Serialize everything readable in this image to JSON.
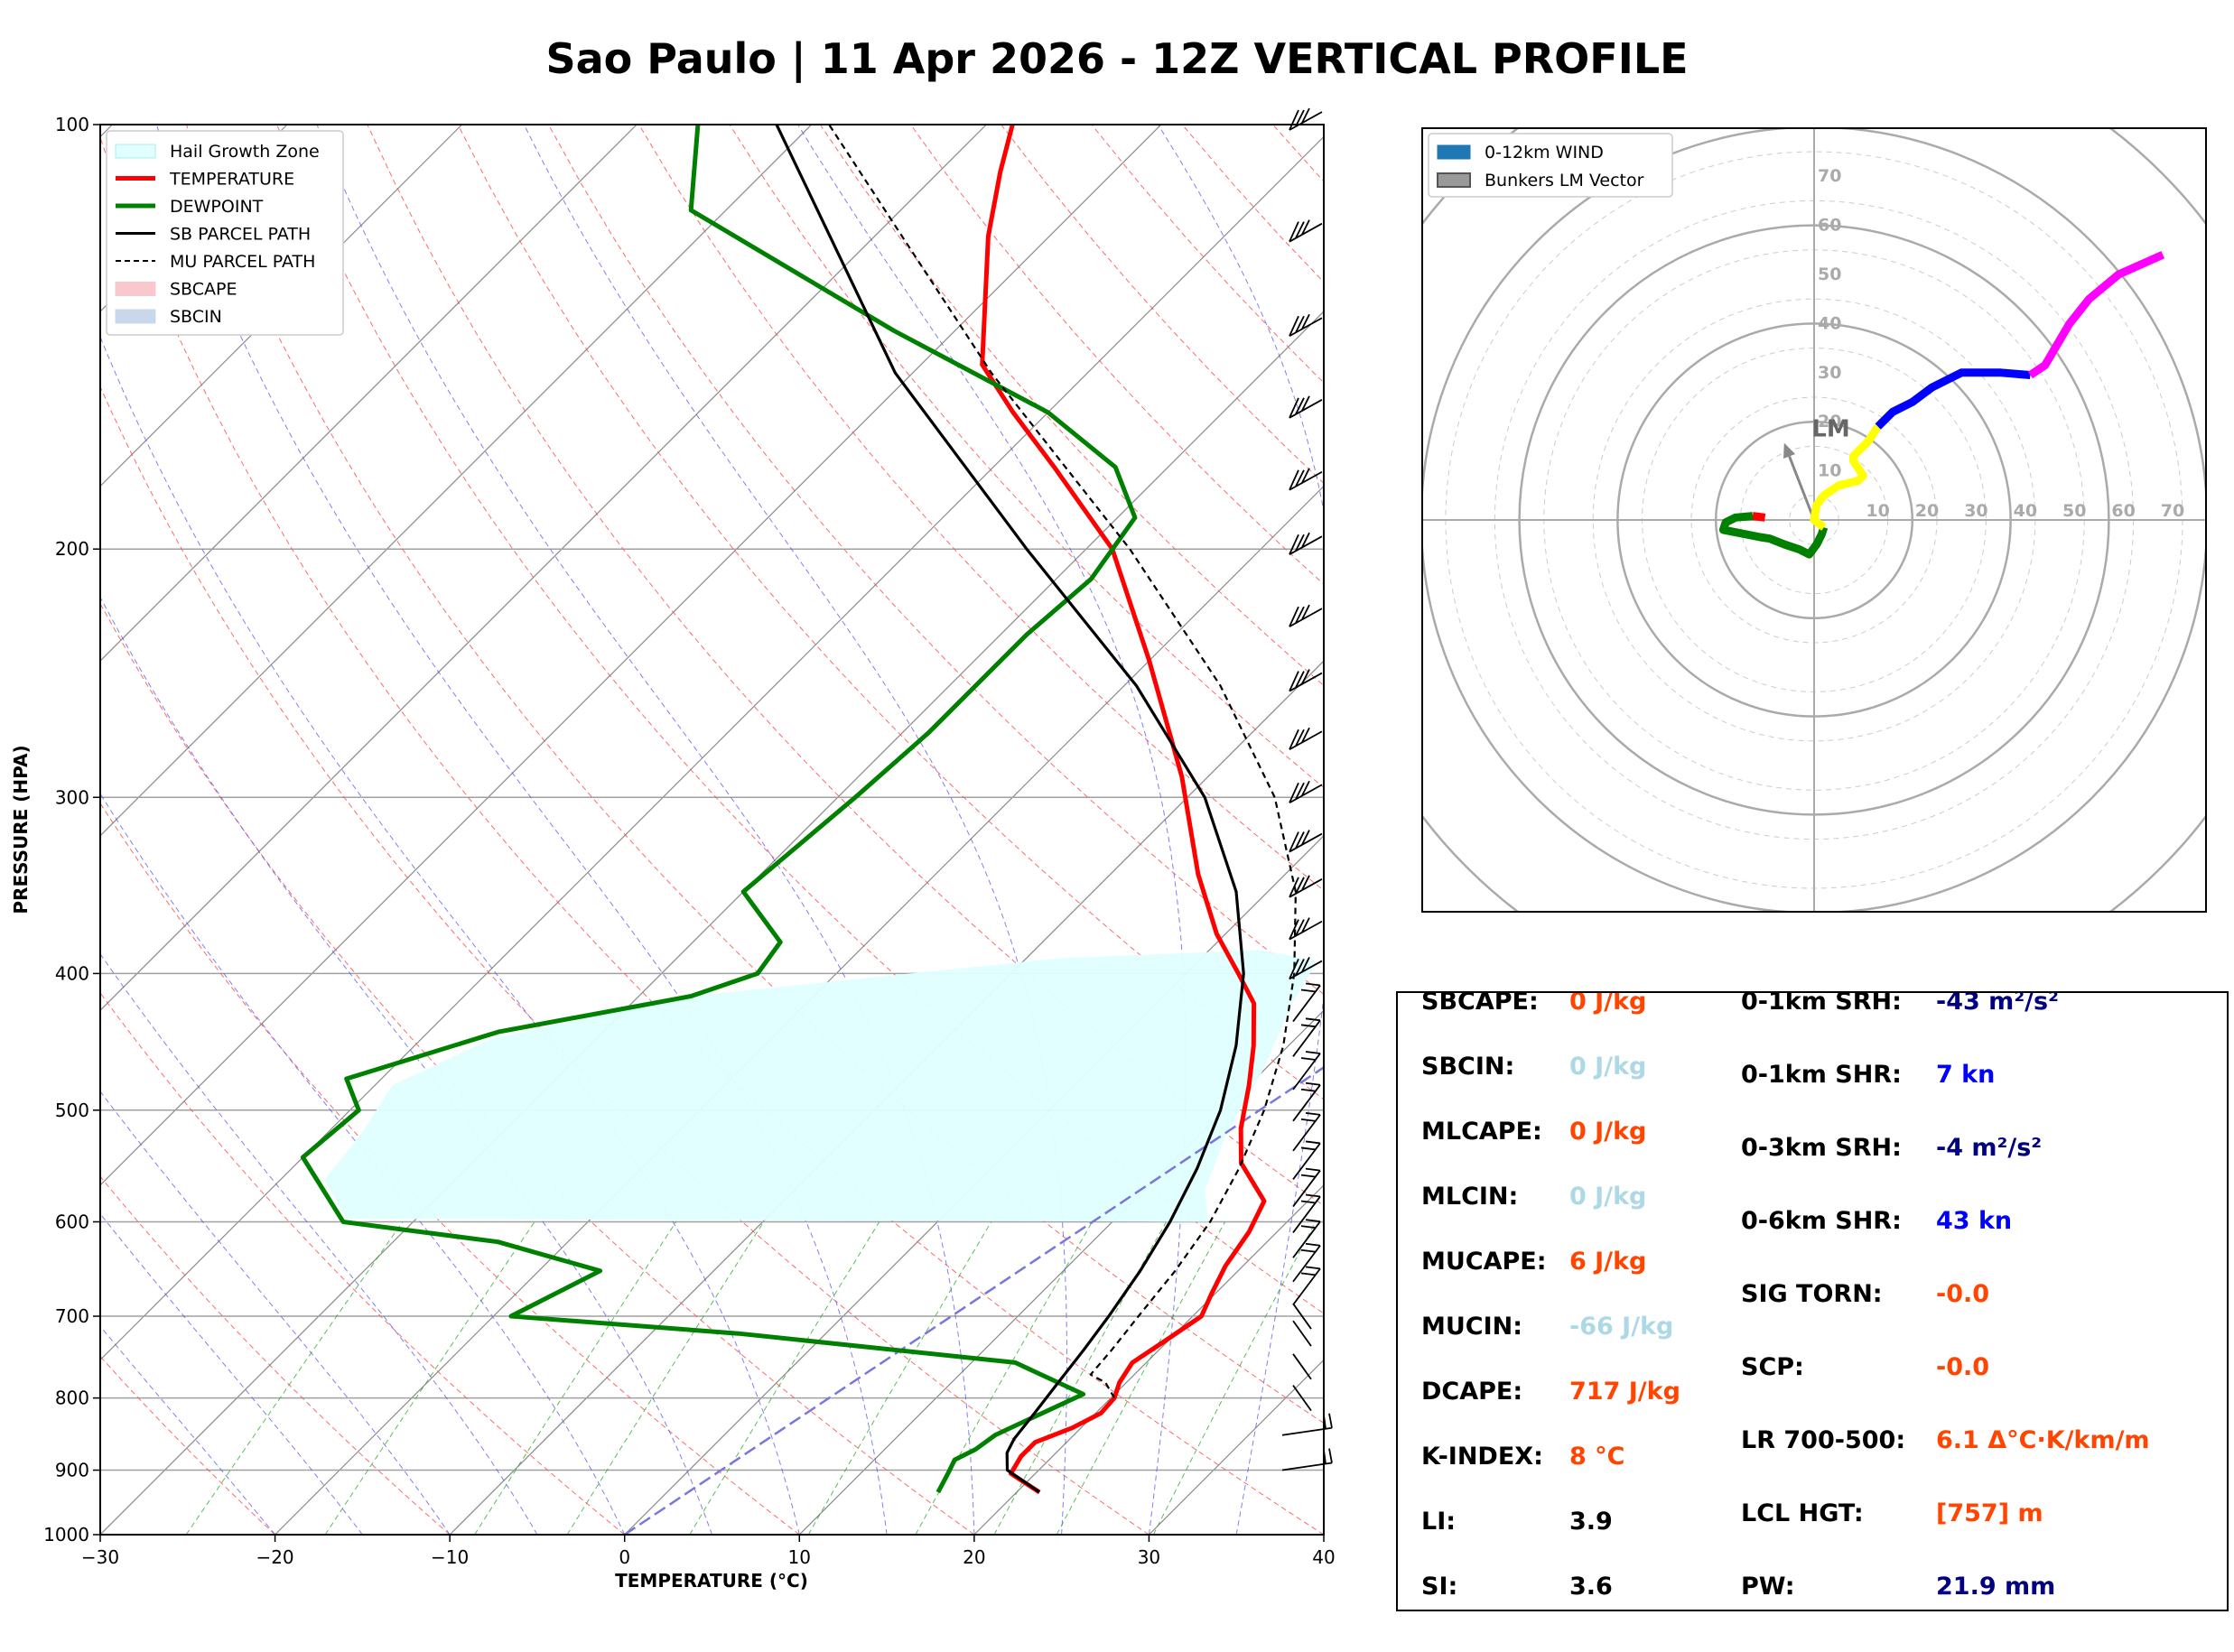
{
  "page": {
    "title": "Sao Paulo | 11 Apr 2026 - 12Z VERTICAL PROFILE"
  },
  "skewt": {
    "xlabel": "TEMPERATURE (°C)",
    "ylabel": "PRESSURE (HPA)",
    "xlim": [
      -30,
      40
    ],
    "ylim": [
      1000,
      100
    ],
    "log_pressure": true,
    "skew": "45° isotherms",
    "x_ticks": [
      -30,
      -20,
      -10,
      0,
      10,
      20,
      30,
      40
    ],
    "p_ticks": [
      100,
      200,
      300,
      400,
      500,
      600,
      700,
      800,
      900,
      1000
    ],
    "legend_position": "top-left",
    "legend": [
      {
        "label": "Hail Growth Zone",
        "kind": "patch",
        "color": "#e0ffff",
        "edge": "#aaeeee"
      },
      {
        "label": "TEMPERATURE",
        "kind": "line",
        "color": "#ff0000",
        "width": 5,
        "dash": ""
      },
      {
        "label": "DEWPOINT",
        "kind": "line",
        "color": "#008000",
        "width": 5,
        "dash": ""
      },
      {
        "label": "SB PARCEL PATH",
        "kind": "line",
        "color": "#000000",
        "width": 3,
        "dash": ""
      },
      {
        "label": "MU PARCEL PATH",
        "kind": "line",
        "color": "#000000",
        "width": 2,
        "dash": "6,4"
      },
      {
        "label": "SBCAPE",
        "kind": "patch",
        "color": "#f8c8cc",
        "edge": "#f8c8cc"
      },
      {
        "label": "SBCIN",
        "kind": "patch",
        "color": "#c8d8ea",
        "edge": "#c8d8ea"
      }
    ]
  },
  "chart_data": [
    {
      "type": "line",
      "series": [
        {
          "name": "TEMPERATURE",
          "color": "#ff0000",
          "points": [
            [
              933,
              21.3
            ],
            [
              905,
              18.6
            ],
            [
              880,
              18.2
            ],
            [
              860,
              18.2
            ],
            [
              840,
              19.5
            ],
            [
              820,
              20.3
            ],
            [
              800,
              20.2
            ],
            [
              780,
              19.6
            ],
            [
              755,
              19.2
            ],
            [
              730,
              19.8
            ],
            [
              700,
              20.5
            ],
            [
              675,
              19.8
            ],
            [
              645,
              19.0
            ],
            [
              610,
              18.4
            ],
            [
              580,
              17.5
            ],
            [
              545,
              14.0
            ],
            [
              515,
              12.0
            ],
            [
              480,
              10.0
            ],
            [
              450,
              8.0
            ],
            [
              420,
              5.6
            ],
            [
              400,
              3.0
            ],
            [
              375,
              -0.5
            ],
            [
              340,
              -5.0
            ],
            [
              290,
              -11.5
            ],
            [
              240,
              -20.0
            ],
            [
              200,
              -28.5
            ],
            [
              175,
              -36.5
            ],
            [
              160,
              -42.0
            ],
            [
              148,
              -46.5
            ],
            [
              120,
              -53.5
            ],
            [
              108,
              -56.5
            ],
            [
              100,
              -58.5
            ]
          ]
        },
        {
          "name": "DEWPOINT",
          "color": "#008000",
          "points": [
            [
              933,
              15.5
            ],
            [
              905,
              15.0
            ],
            [
              885,
              14.6
            ],
            [
              870,
              15.2
            ],
            [
              850,
              15.5
            ],
            [
              835,
              16.2
            ],
            [
              815,
              17.2
            ],
            [
              795,
              18.2
            ],
            [
              755,
              12.5
            ],
            [
              720,
              -5.0
            ],
            [
              700,
              -19.0
            ],
            [
              650,
              -16.5
            ],
            [
              620,
              -24.0
            ],
            [
              600,
              -34.0
            ],
            [
              540,
              -40.0
            ],
            [
              500,
              -39.5
            ],
            [
              475,
              -42.0
            ],
            [
              440,
              -36.0
            ],
            [
              415,
              -27.0
            ],
            [
              400,
              -24.5
            ],
            [
              380,
              -25.0
            ],
            [
              350,
              -30.0
            ],
            [
              300,
              -29.0
            ],
            [
              270,
              -28.5
            ],
            [
              230,
              -28.5
            ],
            [
              210,
              -28.0
            ],
            [
              190,
              -29.0
            ],
            [
              175,
              -33.0
            ],
            [
              160,
              -40.0
            ],
            [
              140,
              -53.5
            ],
            [
              115,
              -72.0
            ],
            [
              100,
              -76.5
            ]
          ]
        },
        {
          "name": "SB PARCEL PATH",
          "color": "#000000",
          "dash": "",
          "points": [
            [
              933,
              21.3
            ],
            [
              900,
              18.2
            ],
            [
              875,
              17.2
            ],
            [
              855,
              16.8
            ],
            [
              820,
              16.5
            ],
            [
              780,
              16.1
            ],
            [
              740,
              15.7
            ],
            [
              700,
              15.2
            ],
            [
              650,
              14.4
            ],
            [
              600,
              13.3
            ],
            [
              550,
              11.8
            ],
            [
              500,
              9.8
            ],
            [
              450,
              7.0
            ],
            [
              400,
              3.3
            ],
            [
              350,
              -1.8
            ],
            [
              300,
              -9.0
            ],
            [
              250,
              -19.3
            ],
            [
              200,
              -33.4
            ],
            [
              150,
              -51.0
            ],
            [
              100,
              -72.0
            ]
          ]
        },
        {
          "name": "MU PARCEL PATH",
          "color": "#000000",
          "dash": "7,5",
          "points": [
            [
              800,
              20.2
            ],
            [
              780,
              18.8
            ],
            [
              770,
              17.5
            ],
            [
              740,
              17.3
            ],
            [
              700,
              16.9
            ],
            [
              650,
              16.4
            ],
            [
              600,
              15.6
            ],
            [
              550,
              14.2
            ],
            [
              500,
              12.3
            ],
            [
              450,
              9.7
            ],
            [
              400,
              6.2
            ],
            [
              350,
              1.6
            ],
            [
              300,
              -5.0
            ],
            [
              250,
              -14.5
            ],
            [
              200,
              -27.5
            ],
            [
              150,
              -45.5
            ],
            [
              100,
              -69.0
            ]
          ]
        }
      ],
      "hail_growth_zone": {
        "p_top": 385,
        "p_bottom": 600,
        "polygon": [
          [
            600,
            15.5
          ],
          [
            597,
            -34.0
          ],
          [
            560,
            -37.5
          ],
          [
            520,
            -38.0
          ],
          [
            480,
            -39.0
          ],
          [
            445,
            -36.0
          ],
          [
            415,
            -27.0
          ],
          [
            390,
            -8.0
          ],
          [
            385,
            3.0
          ],
          [
            392,
            6.8
          ],
          [
            420,
            7.8
          ],
          [
            470,
            10.0
          ],
          [
            520,
            11.5
          ],
          [
            570,
            13.5
          ],
          [
            600,
            15.5
          ]
        ]
      },
      "zero_isotherm_line": {
        "color": "#7777dd",
        "points": [
          [
            1000,
            0
          ],
          [
            100,
            40
          ]
        ]
      },
      "wind_barbs_pressures": [
        100,
        120,
        140,
        160,
        180,
        200,
        225,
        250,
        275,
        300,
        325,
        350,
        375,
        400,
        425,
        450,
        475,
        500,
        525,
        550,
        575,
        600,
        625,
        650,
        675,
        700,
        720,
        760,
        800,
        850,
        900
      ]
    },
    {
      "type": "hodograph",
      "legend": [
        {
          "label": "0-12km WIND",
          "color": "#1f77b4"
        },
        {
          "label": "Bunkers LM Vector",
          "color": "#999999"
        }
      ],
      "rings_kn": [
        10,
        20,
        30,
        40,
        50,
        60,
        70,
        80
      ],
      "ring_labels": [
        "10",
        "20",
        "30",
        "40",
        "50",
        "60",
        "70"
      ],
      "lm_label": "LM",
      "lm_vector_kn": [
        -7,
        18
      ],
      "segments": [
        {
          "color": "#ff0000",
          "points": [
            [
              -10,
              0.5
            ],
            [
              -12.5,
              0.8
            ]
          ]
        },
        {
          "color": "#008000",
          "points": [
            [
              -12.5,
              0.8
            ],
            [
              -16,
              0.5
            ],
            [
              -18,
              -0.5
            ],
            [
              -18.5,
              -2
            ],
            [
              -11,
              -3.5
            ],
            [
              -9,
              -3.8
            ],
            [
              -6,
              -5
            ],
            [
              -3,
              -6
            ],
            [
              -1,
              -7
            ],
            [
              0.5,
              -5
            ],
            [
              1.5,
              -3
            ],
            [
              2,
              -1.5
            ]
          ]
        },
        {
          "color": "#ffff00",
          "points": [
            [
              2,
              -1.5
            ],
            [
              0,
              0
            ],
            [
              0.5,
              3
            ],
            [
              2,
              5
            ],
            [
              5,
              7
            ],
            [
              9,
              8
            ],
            [
              10,
              9
            ],
            [
              8,
              12
            ],
            [
              8,
              13
            ],
            [
              9,
              14
            ],
            [
              11,
              16
            ],
            [
              13,
              19
            ]
          ]
        },
        {
          "color": "#0000ff",
          "points": [
            [
              13,
              19
            ],
            [
              16,
              22
            ],
            [
              20,
              24
            ],
            [
              24,
              27
            ],
            [
              30,
              30
            ],
            [
              38,
              30
            ],
            [
              44,
              29.5
            ]
          ]
        },
        {
          "color": "#ff00ff",
          "points": [
            [
              44,
              29.5
            ],
            [
              47,
              31.5
            ],
            [
              52,
              40
            ],
            [
              56,
              45
            ],
            [
              62,
              50
            ],
            [
              71,
              54
            ]
          ]
        }
      ]
    }
  ],
  "stats": {
    "left": [
      {
        "label": "SBCAPE:",
        "value": "0 J/kg",
        "color": "#ff4500"
      },
      {
        "label": "SBCIN:",
        "value": "0 J/kg",
        "color": "#add8e6"
      },
      {
        "label": "MLCAPE:",
        "value": "0 J/kg",
        "color": "#ff4500"
      },
      {
        "label": "MLCIN:",
        "value": "0 J/kg",
        "color": "#add8e6"
      },
      {
        "label": "MUCAPE:",
        "value": "6 J/kg",
        "color": "#ff4500"
      },
      {
        "label": "MUCIN:",
        "value": "-66 J/kg",
        "color": "#add8e6"
      },
      {
        "label": "DCAPE:",
        "value": "717 J/kg",
        "color": "#ff4500"
      },
      {
        "label": "K-INDEX:",
        "value": "8 °C",
        "color": "#ff4500"
      },
      {
        "label": "LI:",
        "value": "3.9",
        "color": "#000000"
      },
      {
        "label": "SI:",
        "value": "3.6",
        "color": "#000000"
      }
    ],
    "right": [
      {
        "label": "0-1km SRH:",
        "value": "-43 m²/s²",
        "color": "#000080"
      },
      {
        "label": "0-1km SHR:",
        "value": "7 kn",
        "color": "#0000ff"
      },
      {
        "label": "0-3km SRH:",
        "value": "-4 m²/s²",
        "color": "#000080"
      },
      {
        "label": "0-6km SHR:",
        "value": "43 kn",
        "color": "#0000ff"
      },
      {
        "label": "SIG TORN:",
        "value": "-0.0",
        "color": "#ff4500"
      },
      {
        "label": "SCP:",
        "value": "-0.0",
        "color": "#ff4500"
      },
      {
        "label": "LR 700-500:",
        "value": "6.1 Δ°C·K/km/m",
        "color": "#ff4500"
      },
      {
        "label": "LCL HGT:",
        "value": "[757] m",
        "color": "#ff4500"
      },
      {
        "label": "PW:",
        "value": "21.9 mm",
        "color": "#000080"
      }
    ]
  }
}
